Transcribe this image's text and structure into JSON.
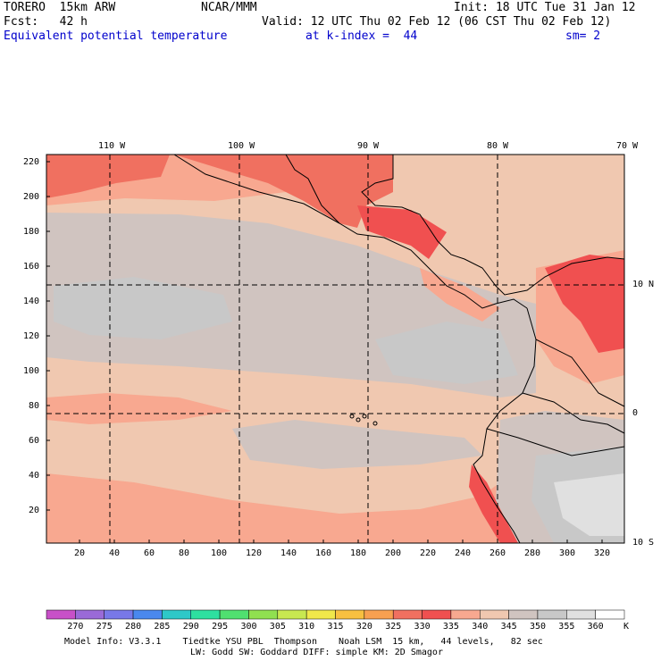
{
  "header": {
    "model": "TORERO  15km ARW",
    "org": "NCAR/MMM",
    "init": "Init: 18 UTC Tue 31 Jan 12",
    "fcst": "Fcst:   42 h",
    "valid": "Valid: 12 UTC Thu 02 Feb 12 (06 CST Thu 02 Feb 12)",
    "field": "Equivalent potential temperature",
    "level": "at k-index =  44",
    "smooth": "sm= 2"
  },
  "map": {
    "lon_labels": [
      "110 W",
      "100 W",
      "90 W",
      "80 W",
      "70 W"
    ],
    "lat_labels": [
      "10 N",
      "0",
      "10 S"
    ],
    "y_ticks": [
      "220",
      "200",
      "180",
      "160",
      "140",
      "120",
      "100",
      "80",
      "60",
      "40",
      "20"
    ],
    "x_ticks": [
      "20",
      "40",
      "60",
      "80",
      "100",
      "120",
      "140",
      "160",
      "180",
      "200",
      "220",
      "240",
      "260",
      "280",
      "300",
      "320"
    ]
  },
  "colorbar": {
    "labels": [
      "270",
      "275",
      "280",
      "285",
      "290",
      "295",
      "300",
      "305",
      "310",
      "315",
      "320",
      "325",
      "330",
      "335",
      "340",
      "345",
      "350",
      "355",
      "360"
    ],
    "unit": "K",
    "colors": [
      "#c850c8",
      "#9a6ad8",
      "#7878e8",
      "#4a88ee",
      "#2ec8c8",
      "#2ee0a0",
      "#50e070",
      "#90e050",
      "#c8e850",
      "#f0e84a",
      "#f8c040",
      "#f8a050",
      "#f07060",
      "#f05050",
      "#f8a890",
      "#f0c8b0",
      "#d0c4c0",
      "#c8c8c8",
      "#e0e0e0",
      "#ffffff"
    ]
  },
  "footer": {
    "line1": "Model Info: V3.3.1    Tiedtke YSU PBL  Thompson    Noah LSM  15 km,   44 levels,   82 sec",
    "line2": "LW: Godd SW: Goddard DIFF: simple KM: 2D Smagor"
  }
}
